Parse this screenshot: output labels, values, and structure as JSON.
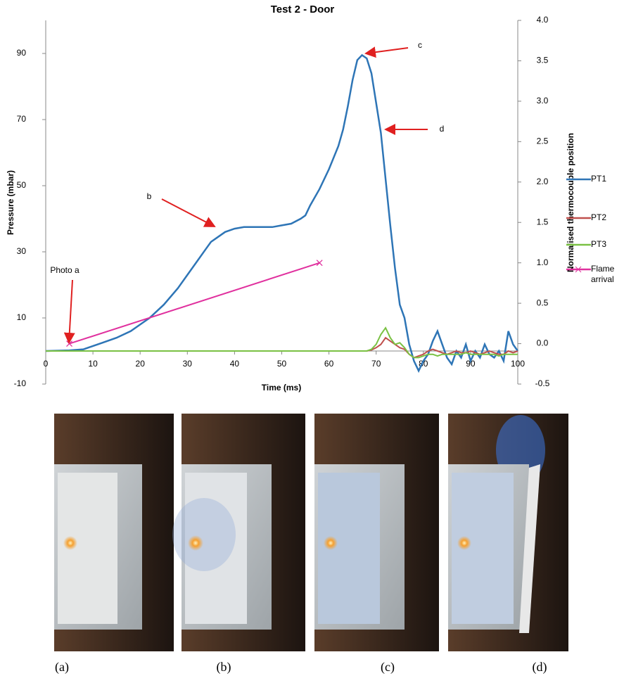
{
  "chart_data": {
    "type": "line",
    "title": "Test 2 - Door",
    "x_label": "Time (ms)",
    "y_label": "Pressure (mbar)",
    "y2_label": "Normalised thermocouple position",
    "x": [
      0,
      5,
      8,
      10,
      12,
      15,
      18,
      20,
      22,
      25,
      28,
      30,
      32,
      34,
      35,
      36,
      38,
      40,
      42,
      45,
      48,
      50,
      52,
      54,
      55,
      56,
      58,
      60,
      62,
      63,
      64,
      65,
      66,
      67,
      68,
      69,
      70,
      71,
      72,
      73,
      74,
      75,
      76,
      77,
      78,
      79,
      80,
      81,
      82,
      83,
      84,
      85,
      86,
      87,
      88,
      89,
      90,
      91,
      92,
      93,
      94,
      95,
      96,
      97,
      98,
      99,
      100
    ],
    "series": [
      {
        "name": "PT1",
        "color": "#2e75b6",
        "values": [
          0,
          0.2,
          0.5,
          1.5,
          2.5,
          4,
          6,
          8,
          10,
          14,
          19,
          23,
          27,
          31,
          33,
          34,
          36,
          37,
          37.5,
          37.5,
          37.5,
          38,
          38.5,
          40,
          41,
          44,
          49,
          55,
          62,
          67,
          74,
          82,
          88,
          89.5,
          88.5,
          84,
          75,
          66,
          52,
          38,
          25,
          14,
          10,
          2,
          -3,
          -6,
          -3,
          -1,
          3,
          6,
          2,
          -2,
          -4,
          0,
          -2,
          2,
          -3,
          0,
          -2,
          2,
          -1,
          -2,
          0,
          -3,
          6,
          2,
          0
        ]
      },
      {
        "name": "PT2",
        "color": "#c0504d",
        "values": [
          0,
          0,
          0,
          0,
          0,
          0,
          0,
          0,
          0,
          0,
          0,
          0,
          0,
          0,
          0,
          0,
          0,
          0,
          0,
          0,
          0,
          0,
          0,
          0,
          0,
          0,
          0,
          0,
          0,
          0,
          0,
          0,
          0,
          0,
          0,
          0.3,
          1,
          2,
          4,
          3,
          2,
          1,
          0.5,
          -1,
          -2,
          -1.5,
          -1,
          0,
          0.5,
          0,
          -0.5,
          -1,
          -0.5,
          0,
          -0.5,
          -0.5,
          0,
          -0.5,
          -1,
          -0.5,
          0,
          -0.5,
          -1,
          -1,
          0,
          -0.5,
          0
        ]
      },
      {
        "name": "PT3",
        "color": "#7ac143",
        "values": [
          0,
          0,
          0,
          0,
          0,
          0,
          0,
          0,
          0,
          0,
          0,
          0,
          0,
          0,
          0,
          0,
          0,
          0,
          0,
          0,
          0,
          0,
          0,
          0,
          0,
          0,
          0,
          0,
          0,
          0,
          0,
          0,
          0,
          0,
          0,
          0.5,
          2,
          5,
          7,
          4,
          2,
          2.5,
          1,
          -1,
          -2,
          -2,
          -1.5,
          -1,
          -1,
          -1.5,
          -1,
          -1,
          -1,
          -1,
          -1,
          -0.5,
          -1,
          -1,
          -1,
          -1,
          -1,
          -1,
          -1.5,
          -1,
          -1,
          -1,
          -1
        ]
      },
      {
        "name": "Flame arrival",
        "color": "#e0309e",
        "axis": "y2",
        "x": [
          5,
          58
        ],
        "values": [
          0,
          1.0
        ]
      }
    ],
    "xlim": [
      0,
      100
    ],
    "xticks": [
      0,
      10,
      20,
      30,
      40,
      50,
      60,
      70,
      80,
      90,
      100
    ],
    "ylim": [
      -10,
      100
    ],
    "yticks": [
      -10,
      10,
      30,
      50,
      70,
      90
    ],
    "y2lim": [
      -0.5,
      4.0
    ],
    "y2ticks": [
      -0.5,
      {
        "value": 0,
        "label": "0.0"
      },
      0.5,
      {
        "value": 1,
        "label": "1.0"
      },
      1.5,
      {
        "value": 2,
        "label": "2.0"
      },
      2.5,
      {
        "value": 3,
        "label": "3.0"
      },
      3.5,
      {
        "value": 4,
        "label": "4.0"
      }
    ],
    "annotations": [
      "Photo a",
      "b",
      "c",
      "d"
    ],
    "legend": "right"
  },
  "captions": [
    "(a)",
    "(b)",
    "(c)",
    "(d)"
  ]
}
